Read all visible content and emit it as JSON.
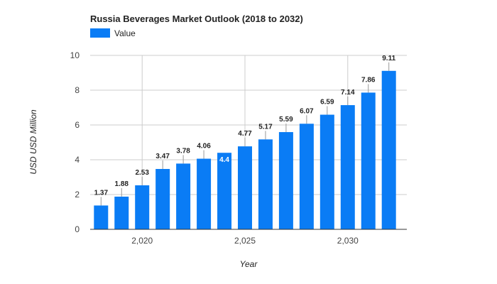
{
  "chart_data": {
    "type": "bar",
    "title": "Russia Beverages Market Outlook (2018 to 2032)",
    "xlabel": "Year",
    "ylabel": "USD USD Million",
    "legend": {
      "label": "Value",
      "placement": "top-left"
    },
    "x": [
      2018,
      2019,
      2020,
      2021,
      2022,
      2023,
      2024,
      2025,
      2026,
      2027,
      2028,
      2029,
      2030,
      2031,
      2032
    ],
    "values": [
      1.37,
      1.88,
      2.53,
      3.47,
      3.78,
      4.06,
      4.4,
      4.77,
      5.17,
      5.59,
      6.07,
      6.59,
      7.14,
      7.86,
      9.11
    ],
    "data_labels": [
      "1.37",
      "1.88",
      "2.53",
      "3.47",
      "3.78",
      "4.06",
      "4.4",
      "4.77",
      "5.17",
      "5.59",
      "6.07",
      "6.59",
      "7.14",
      "7.86",
      "9.11"
    ],
    "highlighted_label_index": 6,
    "x_ticks": [
      2020,
      2025,
      2030
    ],
    "x_tick_labels": [
      "2,020",
      "2,025",
      "2,030"
    ],
    "y_ticks": [
      0,
      2,
      4,
      6,
      8,
      10
    ],
    "y_tick_labels": [
      "0",
      "2",
      "4",
      "6",
      "8",
      "10"
    ],
    "ylim": [
      0,
      10
    ],
    "grid": true,
    "colors": {
      "bar": "#0a7cf5",
      "grid": "#cccccc",
      "axis": "#333333",
      "text": "#222222",
      "muted": "#444444"
    }
  }
}
